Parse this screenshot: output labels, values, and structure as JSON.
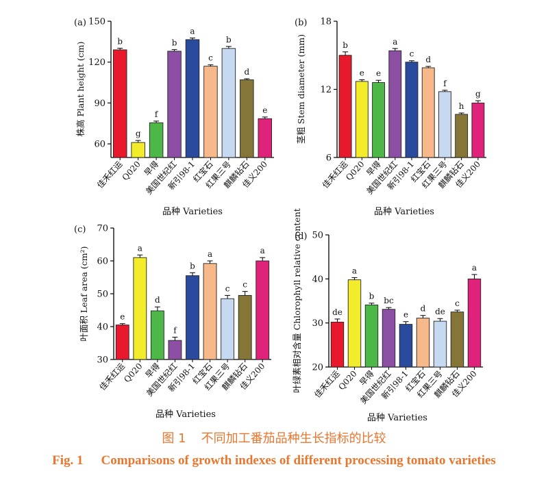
{
  "figure_caption": {
    "cn_number": "图 1",
    "cn_text": "不同加工番茄品种生长指标的比较",
    "en_number": "Fig. 1",
    "en_text": "Comparisons of growth indexes of different processing tomato varieties"
  },
  "colors": [
    "#e8192c",
    "#f2ec2a",
    "#4db848",
    "#8c4fa3",
    "#2a4a9e",
    "#f7b88a",
    "#c6d9f0",
    "#857536",
    "#e0237a"
  ],
  "chart_data": [
    {
      "type": "bar",
      "panel": "(a)",
      "ylabel": "株高 Plant height (cm)",
      "xlabel": "品种 Varieties",
      "categories": [
        "佳禾红运",
        "Q020",
        "早得",
        "美国世纪红",
        "新引98-1",
        "红宝石",
        "红果三号",
        "麒麟钻石",
        "佳义200"
      ],
      "values": [
        129,
        61,
        75.5,
        128,
        136.5,
        117,
        130,
        107,
        78.5
      ],
      "errors": [
        1.2,
        1.5,
        1.2,
        1.2,
        1.2,
        1.0,
        1.5,
        0.8,
        1.2
      ],
      "letters": [
        "b",
        "g",
        "f",
        "b",
        "a",
        "c",
        "b",
        "d",
        "e"
      ],
      "ylim": [
        50,
        150
      ],
      "yticks": [
        60,
        90,
        120,
        150
      ],
      "grid": false
    },
    {
      "type": "bar",
      "panel": "(b)",
      "ylabel": "茎粗 Stem diameter (mm)",
      "xlabel": "品种 Varieties",
      "categories": [
        "佳禾红运",
        "Q020",
        "早得",
        "美国世纪红",
        "新引98-1",
        "红宝石",
        "红果三号",
        "麒麟钻石",
        "佳义200"
      ],
      "values": [
        15,
        12.7,
        12.6,
        15.4,
        14.4,
        13.9,
        11.8,
        9.8,
        10.8
      ],
      "errors": [
        0.3,
        0.15,
        0.2,
        0.2,
        0.12,
        0.12,
        0.12,
        0.12,
        0.2
      ],
      "letters": [
        "b",
        "e",
        "e",
        "a",
        "c",
        "d",
        "f",
        "h",
        "g"
      ],
      "ylim": [
        6,
        18
      ],
      "yticks": [
        6,
        12,
        18
      ],
      "grid": false
    },
    {
      "type": "bar",
      "panel": "(c)",
      "ylabel": "叶面积 Leaf area (cm²)",
      "xlabel": "品种 Varieties",
      "categories": [
        "佳禾红运",
        "Q020",
        "早得",
        "美国世纪红",
        "新引98-1",
        "红宝石",
        "红果三号",
        "麒麟钻石",
        "佳义200"
      ],
      "values": [
        40.5,
        61,
        44.8,
        35.8,
        55.5,
        59.2,
        48.5,
        49.5,
        60
      ],
      "errors": [
        0.4,
        0.8,
        1.2,
        1.0,
        0.9,
        0.8,
        1.0,
        1.2,
        1.0
      ],
      "letters": [
        "e",
        "a",
        "d",
        "f",
        "b",
        "a",
        "c",
        "c",
        "a"
      ],
      "ylim": [
        30,
        70
      ],
      "yticks": [
        30,
        40,
        50,
        60,
        70
      ],
      "grid": false
    },
    {
      "type": "bar",
      "panel": "(d)",
      "ylabel": "叶绿素相对含量 Chlorophyll relative content",
      "xlabel": "品种 Varieties",
      "categories": [
        "佳禾红运",
        "Q020",
        "早得",
        "美国世纪红",
        "新引98-1",
        "红宝石",
        "红果三号",
        "麒麟钻石",
        "佳义200"
      ],
      "values": [
        30.2,
        39.8,
        34.1,
        33.1,
        29.7,
        31.1,
        30.4,
        32.5,
        40
      ],
      "errors": [
        0.7,
        0.5,
        0.4,
        0.4,
        0.6,
        0.6,
        0.6,
        0.4,
        1.0
      ],
      "letters": [
        "de",
        "a",
        "b",
        "bc",
        "e",
        "d",
        "de",
        "c",
        "a"
      ],
      "ylim": [
        20,
        50
      ],
      "yticks": [
        20,
        30,
        40,
        50
      ],
      "grid": false
    }
  ]
}
